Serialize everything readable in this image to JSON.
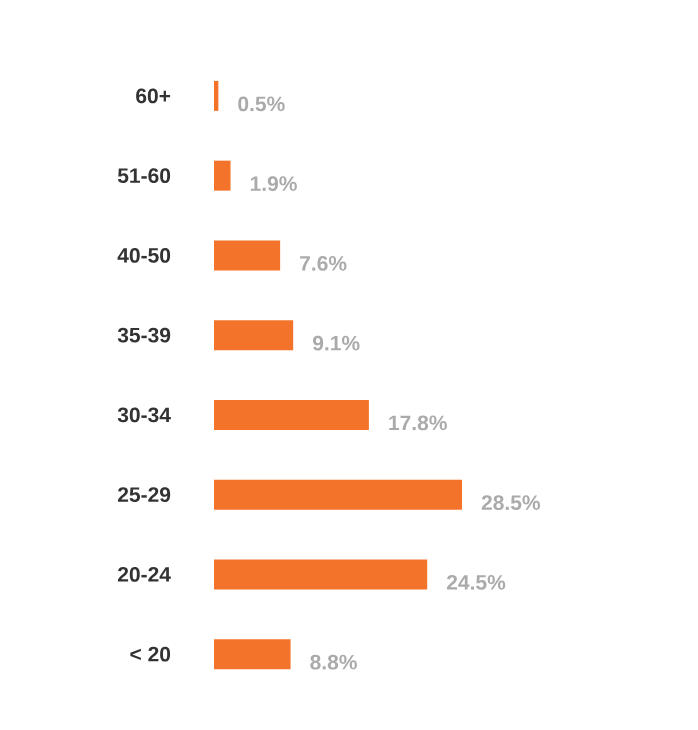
{
  "chart_data": {
    "type": "bar",
    "orientation": "horizontal",
    "categories": [
      "60+",
      "51-60",
      "40-50",
      "35-39",
      "30-34",
      "25-29",
      "20-24",
      "< 20"
    ],
    "values": [
      0.5,
      1.9,
      7.6,
      9.1,
      17.8,
      28.5,
      24.5,
      8.8
    ],
    "value_labels": [
      "0.5%",
      "1.9%",
      "7.6%",
      "9.1%",
      "17.8%",
      "28.5%",
      "24.5%",
      "8.8%"
    ],
    "color": "#f4732a"
  }
}
